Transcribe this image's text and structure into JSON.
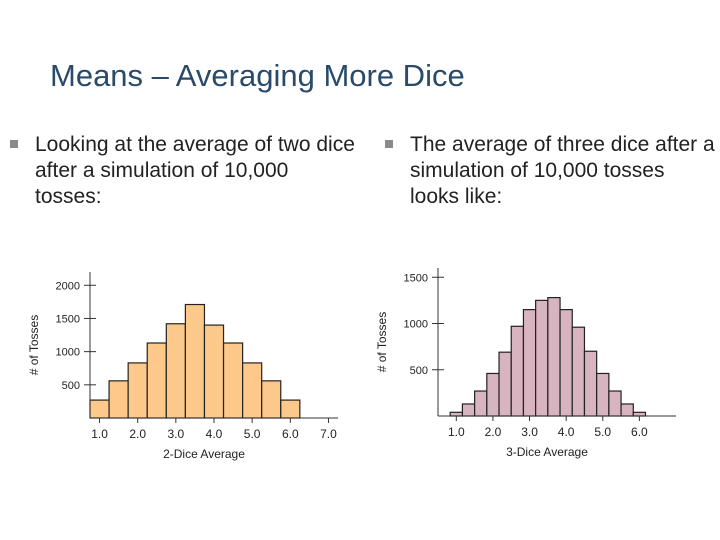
{
  "slide": {
    "title": "Means – Averaging More Dice",
    "bullets": [
      {
        "text": "Looking at the average of two dice after a simulation of 10,000 tosses:"
      },
      {
        "text": "The average of three dice after a simulation of 10,000 tosses looks like:"
      }
    ]
  },
  "colors": {
    "title": "#2a4a6a",
    "bullet_marker": "#8a8a8a",
    "two_dice_fill": "#fcc98a",
    "three_dice_fill": "#d8b4c0",
    "bar_stroke": "#222222"
  },
  "chart_data": [
    {
      "type": "bar",
      "xlabel": "2-Dice Average",
      "ylabel": "# of Tosses",
      "ylim": [
        0,
        2200
      ],
      "xlim": [
        0.75,
        7.25
      ],
      "yticks": [
        "500",
        "1000",
        "1500",
        "2000"
      ],
      "xticks": [
        "1.0",
        "2.0",
        "3.0",
        "4.0",
        "5.0",
        "6.0",
        "7.0"
      ],
      "bin_width": 0.5,
      "bins": [
        1.0,
        1.5,
        2.0,
        2.5,
        3.0,
        3.5,
        4.0,
        4.5,
        5.0,
        5.5,
        6.0
      ],
      "values": [
        270,
        560,
        830,
        1130,
        1420,
        1710,
        1400,
        1130,
        830,
        560,
        270
      ]
    },
    {
      "type": "bar",
      "xlabel": "3-Dice Average",
      "ylabel": "# of Tosses",
      "ylim": [
        0,
        1600
      ],
      "xlim": [
        0.5,
        7.0
      ],
      "yticks": [
        "500",
        "1000",
        "1500"
      ],
      "xticks": [
        "1.0",
        "2.0",
        "3.0",
        "4.0",
        "5.0",
        "6.0"
      ],
      "bin_width": 0.3333,
      "bins": [
        1.0,
        1.3333,
        1.6667,
        2.0,
        2.3333,
        2.6667,
        3.0,
        3.3333,
        3.6667,
        4.0,
        4.3333,
        4.6667,
        5.0,
        5.3333,
        5.6667,
        6.0
      ],
      "values": [
        40,
        130,
        270,
        460,
        690,
        970,
        1150,
        1250,
        1280,
        1150,
        960,
        700,
        460,
        270,
        130,
        40
      ]
    }
  ]
}
